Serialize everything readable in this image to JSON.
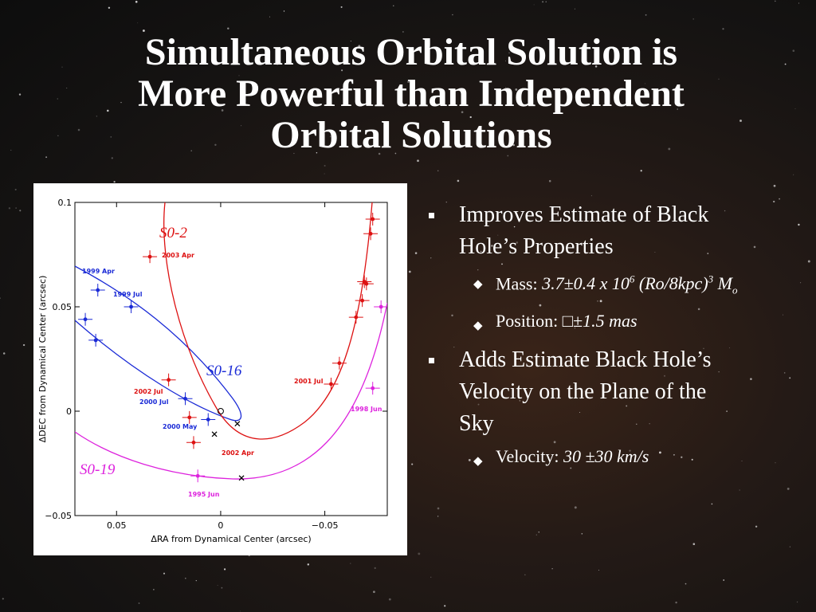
{
  "slide": {
    "title_lines": [
      "Simultaneous Orbital Solution is",
      "More Powerful than Independent",
      "Orbital Solutions"
    ]
  },
  "bullets": [
    {
      "text_lines": [
        "Improves Estimate of Black",
        "Hole’s Properties"
      ],
      "subs": [
        {
          "label": "Mass: ",
          "value": "3.7±0.4 x 10",
          "sup": "6",
          "value2": " (Ro/8kpc)",
          "sup2": "3",
          "value3": " M",
          "sub": "o"
        },
        {
          "label": "Position: ",
          "value": "□±1.5 mas"
        }
      ]
    },
    {
      "text_lines": [
        "Adds Estimate Black Hole’s",
        "Velocity on the Plane of the",
        "Sky"
      ],
      "subs": [
        {
          "label": "Velocity: ",
          "value": "30 ±30 km/s"
        }
      ]
    }
  ],
  "figure": {
    "xlabel": "ΔRA from Dynamical Center (arcsec)",
    "ylabel": "ΔDEC from Dynamical Center (arcsec)",
    "xticks": [
      "0.05",
      "0",
      "−0.05"
    ],
    "yticks": [
      "0.1",
      "0.05",
      "0",
      "−0.05"
    ],
    "star_labels": [
      {
        "text": "S0-2",
        "color": "#dd1111"
      },
      {
        "text": "S0-16",
        "color": "#1a2ad6"
      },
      {
        "text": "S0-19",
        "color": "#dd22dd"
      }
    ],
    "epoch_labels": [
      {
        "text": "2003 Apr",
        "color": "#dd1111"
      },
      {
        "text": "1999 Apr",
        "color": "#1a2ad6"
      },
      {
        "text": "1999 Jul",
        "color": "#1a2ad6"
      },
      {
        "text": "2002 Jul",
        "color": "#dd1111"
      },
      {
        "text": "2000 Jul",
        "color": "#1a2ad6"
      },
      {
        "text": "2000 May",
        "color": "#1a2ad6"
      },
      {
        "text": "2002 Apr",
        "color": "#dd1111"
      },
      {
        "text": "2001 Jul",
        "color": "#dd1111"
      },
      {
        "text": "1998 Jun",
        "color": "#dd22dd"
      },
      {
        "text": "1995 Jun",
        "color": "#dd22dd"
      }
    ]
  },
  "chart_data": {
    "type": "scatter",
    "xlabel": "ΔRA from Dynamical Center (arcsec)",
    "ylabel": "ΔDEC from Dynamical Center (arcsec)",
    "xlim": [
      0.07,
      -0.08
    ],
    "ylim": [
      -0.05,
      0.1
    ],
    "xticks": [
      0.05,
      0,
      -0.05
    ],
    "yticks": [
      0.1,
      0.05,
      0,
      -0.05
    ],
    "series": [
      {
        "name": "S0-2",
        "color": "#dd1111",
        "x": [
          0.034,
          0.025,
          0.015,
          0.013,
          -0.053,
          -0.057,
          -0.065,
          -0.068,
          -0.069,
          -0.07,
          -0.072,
          -0.073
        ],
        "y": [
          0.074,
          0.015,
          -0.003,
          -0.015,
          0.013,
          0.023,
          0.045,
          0.053,
          0.062,
          0.061,
          0.085,
          0.092
        ]
      },
      {
        "name": "S0-16",
        "color": "#1a2ad6",
        "x": [
          0.065,
          0.06,
          0.059,
          0.043,
          0.017,
          0.006
        ],
        "y": [
          0.044,
          0.034,
          0.058,
          0.05,
          0.006,
          -0.004
        ]
      },
      {
        "name": "S0-19",
        "color": "#dd22dd",
        "x": [
          0.011,
          -0.073,
          -0.077
        ],
        "y": [
          -0.031,
          0.011,
          0.05
        ]
      }
    ]
  }
}
